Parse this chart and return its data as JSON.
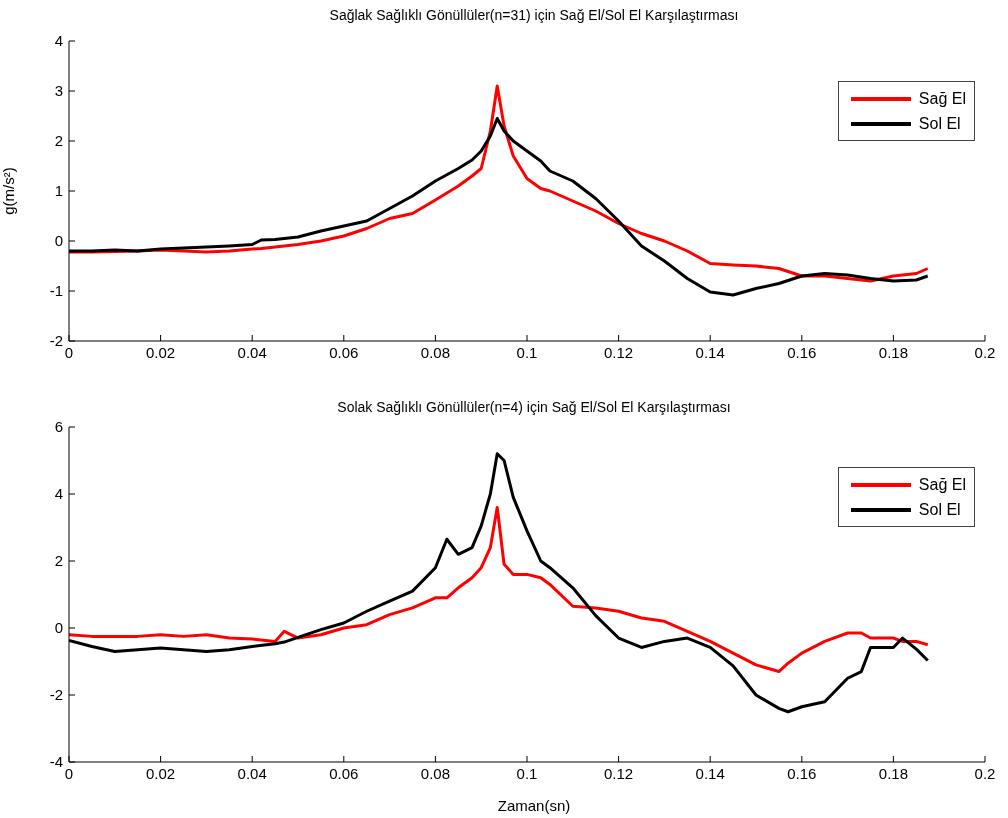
{
  "chart_data": [
    {
      "type": "line",
      "title": "Sağlak Sağlıklı Gönüllüler(n=31) için Sağ El/Sol El Karşılaştırması",
      "ylabel": "g(m/s²)",
      "x": [
        0,
        0.005,
        0.01,
        0.015,
        0.02,
        0.025,
        0.03,
        0.035,
        0.04,
        0.042,
        0.045,
        0.05,
        0.055,
        0.06,
        0.065,
        0.07,
        0.075,
        0.08,
        0.085,
        0.088,
        0.09,
        0.092,
        0.0935,
        0.095,
        0.097,
        0.1,
        0.103,
        0.105,
        0.11,
        0.115,
        0.12,
        0.125,
        0.13,
        0.135,
        0.14,
        0.145,
        0.15,
        0.155,
        0.16,
        0.165,
        0.17,
        0.175,
        0.18,
        0.185,
        0.1875
      ],
      "series": [
        {
          "name": "Sağ El",
          "color": "#ff0000",
          "values": [
            -0.22,
            -0.22,
            -0.21,
            -0.2,
            -0.18,
            -0.2,
            -0.22,
            -0.2,
            -0.16,
            -0.15,
            -0.12,
            -0.07,
            0,
            0.1,
            0.25,
            0.45,
            0.55,
            0.82,
            1.1,
            1.3,
            1.45,
            2.2,
            3.1,
            2.3,
            1.7,
            1.25,
            1.05,
            1.0,
            0.8,
            0.6,
            0.35,
            0.15,
            0,
            -0.2,
            -0.45,
            -0.48,
            -0.5,
            -0.55,
            -0.7,
            -0.7,
            -0.75,
            -0.8,
            -0.7,
            -0.65,
            -0.55
          ]
        },
        {
          "name": "Sol El",
          "color": "#000000",
          "values": [
            -0.2,
            -0.2,
            -0.18,
            -0.2,
            -0.16,
            -0.14,
            -0.12,
            -0.1,
            -0.07,
            0.02,
            0.03,
            0.08,
            0.2,
            0.3,
            0.4,
            0.65,
            0.9,
            1.2,
            1.45,
            1.62,
            1.8,
            2.1,
            2.45,
            2.2,
            2.0,
            1.8,
            1.6,
            1.4,
            1.2,
            0.85,
            0.4,
            -0.1,
            -0.4,
            -0.75,
            -1.02,
            -1.08,
            -0.95,
            -0.85,
            -0.7,
            -0.65,
            -0.68,
            -0.75,
            -0.8,
            -0.78,
            -0.7
          ]
        }
      ],
      "xlim": [
        0,
        0.2
      ],
      "xticks": [
        0,
        0.02,
        0.04,
        0.06,
        0.08,
        0.1,
        0.12,
        0.14,
        0.16,
        0.18,
        0.2
      ],
      "ylim": [
        -2,
        4
      ],
      "yticks": [
        -2,
        -1,
        0,
        1,
        2,
        3,
        4
      ],
      "legend": "top right"
    },
    {
      "type": "line",
      "title": "Solak Sağlıklı Gönüllüler(n=4) için Sağ El/Sol El Karşılaştırması",
      "xlabel": "Zaman(sn)",
      "x": [
        0,
        0.005,
        0.01,
        0.015,
        0.02,
        0.025,
        0.03,
        0.035,
        0.04,
        0.045,
        0.047,
        0.05,
        0.055,
        0.06,
        0.065,
        0.07,
        0.075,
        0.08,
        0.0825,
        0.085,
        0.088,
        0.09,
        0.092,
        0.0935,
        0.095,
        0.097,
        0.1,
        0.103,
        0.105,
        0.11,
        0.115,
        0.12,
        0.125,
        0.13,
        0.135,
        0.14,
        0.145,
        0.15,
        0.155,
        0.157,
        0.16,
        0.165,
        0.17,
        0.173,
        0.175,
        0.18,
        0.182,
        0.185,
        0.1875
      ],
      "series": [
        {
          "name": "Sağ El",
          "color": "#ff0000",
          "values": [
            -0.2,
            -0.25,
            -0.25,
            -0.25,
            -0.2,
            -0.25,
            -0.2,
            -0.3,
            -0.33,
            -0.4,
            -0.1,
            -0.3,
            -0.2,
            0,
            0.1,
            0.4,
            0.6,
            0.9,
            0.9,
            1.2,
            1.5,
            1.8,
            2.4,
            3.6,
            1.9,
            1.6,
            1.6,
            1.5,
            1.3,
            0.65,
            0.6,
            0.5,
            0.3,
            0.2,
            -0.1,
            -0.4,
            -0.75,
            -1.1,
            -1.3,
            -1.05,
            -0.75,
            -0.4,
            -0.15,
            -0.15,
            -0.3,
            -0.3,
            -0.4,
            -0.4,
            -0.5
          ]
        },
        {
          "name": "Sol El",
          "color": "#000000",
          "values": [
            -0.37,
            -0.55,
            -0.7,
            -0.65,
            -0.6,
            -0.65,
            -0.7,
            -0.65,
            -0.55,
            -0.47,
            -0.42,
            -0.28,
            -0.05,
            0.15,
            0.5,
            0.8,
            1.1,
            1.8,
            2.65,
            2.2,
            2.4,
            3.05,
            4.0,
            5.2,
            5.0,
            3.9,
            2.9,
            2.0,
            1.8,
            1.2,
            0.37,
            -0.3,
            -0.58,
            -0.4,
            -0.3,
            -0.58,
            -1.13,
            -2.0,
            -2.4,
            -2.5,
            -2.35,
            -2.2,
            -1.5,
            -1.3,
            -0.58,
            -0.58,
            -0.3,
            -0.63,
            -0.97
          ]
        }
      ],
      "xlim": [
        0,
        0.2
      ],
      "xticks": [
        0,
        0.02,
        0.04,
        0.06,
        0.08,
        0.1,
        0.12,
        0.14,
        0.16,
        0.18,
        0.2
      ],
      "ylim": [
        -4,
        6
      ],
      "yticks": [
        -4,
        -2,
        0,
        2,
        4,
        6
      ],
      "legend": "top right"
    }
  ]
}
